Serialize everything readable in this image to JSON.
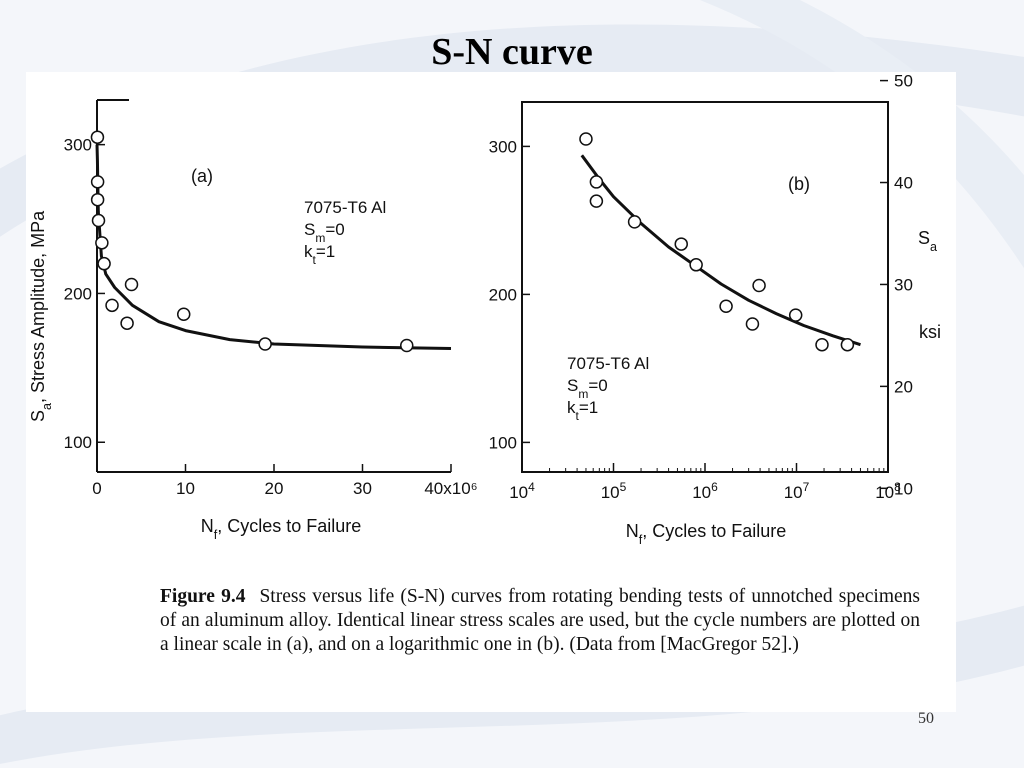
{
  "slide": {
    "title": "S-N curve",
    "page_number": "50"
  },
  "caption": {
    "label": "Figure 9.4",
    "text": "Stress versus life (S-N) curves from rotating bending tests of unnotched specimens of an aluminum alloy. Identical linear stress scales are used, but the cycle numbers are plotted on a linear scale in (a), and on a logarithmic one in (b). (Data from [MacGregor 52].)"
  },
  "colors": {
    "ink": "#111111",
    "background": "#ffffff"
  },
  "chart_data": [
    {
      "type": "scatter",
      "panel_label": "(a)",
      "xlabel": "N_f, Cycles to Failure",
      "ylabel": "S_a, Stress Amplitude, MPa",
      "xlim": [
        0,
        40000000
      ],
      "ylim": [
        80,
        330
      ],
      "x_ticks": [
        {
          "value": 0,
          "label": "0"
        },
        {
          "value": 10000000,
          "label": "10"
        },
        {
          "value": 20000000,
          "label": "20"
        },
        {
          "value": 30000000,
          "label": "30"
        },
        {
          "value": 40000000,
          "label": "40x10⁶"
        }
      ],
      "y_ticks": [
        {
          "value": 100,
          "label": "100"
        },
        {
          "value": 200,
          "label": "200"
        },
        {
          "value": 300,
          "label": "300"
        }
      ],
      "annotation": [
        "7075-T6 Al",
        "Sm=0",
        "kt=1"
      ],
      "points": [
        {
          "x": 50000,
          "y": 305
        },
        {
          "x": 70000,
          "y": 275
        },
        {
          "x": 70000,
          "y": 263
        },
        {
          "x": 170000,
          "y": 249
        },
        {
          "x": 550000,
          "y": 234
        },
        {
          "x": 800000,
          "y": 220
        },
        {
          "x": 1700000,
          "y": 192
        },
        {
          "x": 3400000,
          "y": 180
        },
        {
          "x": 3900000,
          "y": 206
        },
        {
          "x": 9800000,
          "y": 186
        },
        {
          "x": 19000000,
          "y": 166
        },
        {
          "x": 35000000,
          "y": 165
        }
      ],
      "fit_curve": [
        {
          "x": 0,
          "y": 300
        },
        {
          "x": 50000,
          "y": 290
        },
        {
          "x": 150000,
          "y": 255
        },
        {
          "x": 500000,
          "y": 225
        },
        {
          "x": 1000000,
          "y": 213
        },
        {
          "x": 2000000,
          "y": 204
        },
        {
          "x": 4000000,
          "y": 192
        },
        {
          "x": 7000000,
          "y": 181
        },
        {
          "x": 10000000,
          "y": 175
        },
        {
          "x": 15000000,
          "y": 169
        },
        {
          "x": 20000000,
          "y": 166
        },
        {
          "x": 30000000,
          "y": 164
        },
        {
          "x": 40000000,
          "y": 163
        }
      ]
    },
    {
      "type": "scatter",
      "panel_label": "(b)",
      "xlabel": "N_f, Cycles to Failure",
      "x_scale": "log",
      "xlim": [
        10000,
        100000000
      ],
      "ylim": [
        80,
        330
      ],
      "y2_label": "S_a ksi",
      "y2_lim": [
        11.6,
        47.9
      ],
      "x_ticks": [
        {
          "value": 10000,
          "base": "10",
          "exp": "4"
        },
        {
          "value": 100000,
          "base": "10",
          "exp": "5"
        },
        {
          "value": 1000000,
          "base": "10",
          "exp": "6"
        },
        {
          "value": 10000000,
          "base": "10",
          "exp": "7"
        },
        {
          "value": 100000000,
          "base": "10",
          "exp": "8"
        }
      ],
      "y_ticks": [
        {
          "value": 100,
          "label": "100"
        },
        {
          "value": 200,
          "label": "200"
        },
        {
          "value": 300,
          "label": "300"
        }
      ],
      "y2_ticks": [
        {
          "value": 10,
          "label": "10"
        },
        {
          "value": 20,
          "label": "20"
        },
        {
          "value": 30,
          "label": "30"
        },
        {
          "value": 40,
          "label": "40"
        },
        {
          "value": 50,
          "label": "50"
        }
      ],
      "annotation": [
        "7075-T6 Al",
        "Sm=0",
        "kt=1"
      ],
      "points": [
        {
          "x": 50000,
          "y": 305
        },
        {
          "x": 65000,
          "y": 276
        },
        {
          "x": 65000,
          "y": 263
        },
        {
          "x": 170000,
          "y": 249
        },
        {
          "x": 550000,
          "y": 234
        },
        {
          "x": 800000,
          "y": 220
        },
        {
          "x": 1700000,
          "y": 192
        },
        {
          "x": 3300000,
          "y": 180
        },
        {
          "x": 3900000,
          "y": 206
        },
        {
          "x": 9800000,
          "y": 186
        },
        {
          "x": 19000000,
          "y": 166
        },
        {
          "x": 36000000,
          "y": 166
        }
      ],
      "fit_curve": [
        {
          "x": 45000,
          "y": 294
        },
        {
          "x": 70000,
          "y": 278
        },
        {
          "x": 100000,
          "y": 266
        },
        {
          "x": 200000,
          "y": 248
        },
        {
          "x": 400000,
          "y": 232
        },
        {
          "x": 800000,
          "y": 219
        },
        {
          "x": 1500000,
          "y": 207
        },
        {
          "x": 3000000,
          "y": 196
        },
        {
          "x": 6000000,
          "y": 187
        },
        {
          "x": 12000000,
          "y": 179
        },
        {
          "x": 25000000,
          "y": 172
        },
        {
          "x": 50000000,
          "y": 166
        }
      ]
    }
  ]
}
